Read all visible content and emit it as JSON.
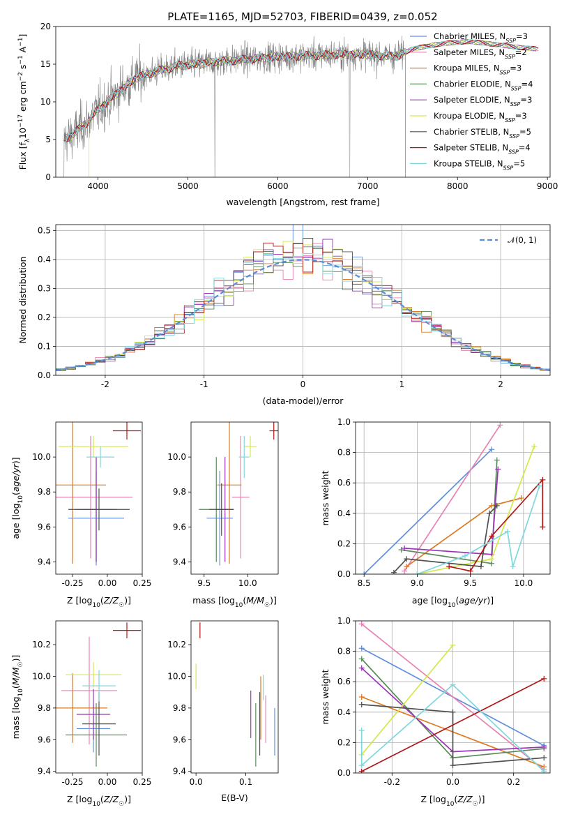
{
  "figure": {
    "title": "PLATE=1165, MJD=52703, FIBERID=0439, z=0.052"
  },
  "colors": {
    "Chabrier MILES": "#5f8fdc",
    "Salpeter MILES": "#e882b4",
    "Kroupa MILES": "#dd7a23",
    "Chabrier ELODIE": "#5a8a5a",
    "Salpeter ELODIE": "#9b35b8",
    "Kroupa ELODIE": "#d4e84a",
    "Chabrier STELIB": "#505050",
    "Salpeter STELIB": "#b01818",
    "Kroupa STELIB": "#7fd7dd",
    "data": "#7f7f7f"
  },
  "chart_data": [
    {
      "id": "spectrum",
      "type": "line",
      "title": "PLATE=1165, MJD=52703, FIBERID=0439, z=0.052",
      "xlabel": "wavelength [Angstrom, rest frame]",
      "ylabel": "Flux [f_λ10^-17 erg cm^-2 s^-1 A^-1]",
      "xlim": [
        3530,
        9030
      ],
      "ylim": [
        0,
        20
      ],
      "xticks": [
        4000,
        5000,
        6000,
        7000,
        8000,
        9000
      ],
      "yticks": [
        0,
        5,
        10,
        15,
        20
      ],
      "grid": false,
      "legend_position": "right",
      "legend": [
        {
          "name": "Chabrier MILES",
          "sub": "SSP",
          "n": "3"
        },
        {
          "name": "Salpeter MILES",
          "sub": "SSP",
          "n": "2"
        },
        {
          "name": "Kroupa MILES",
          "sub": "SSP",
          "n": "3"
        },
        {
          "name": "Chabrier ELODIE",
          "sub": "SSP",
          "n": "4"
        },
        {
          "name": "Salpeter ELODIE",
          "sub": "SSP",
          "n": "3"
        },
        {
          "name": "Kroupa ELODIE",
          "sub": "SSP",
          "n": "3"
        },
        {
          "name": "Chabrier STELIB",
          "sub": "SSP",
          "n": "5"
        },
        {
          "name": "Salpeter STELIB",
          "sub": "SSP",
          "n": "4"
        },
        {
          "name": "Kroupa STELIB",
          "sub": "SSP",
          "n": "5"
        }
      ],
      "continuum": {
        "wavelength": [
          3620,
          3700,
          3800,
          3900,
          4000,
          4100,
          4200,
          4300,
          4400,
          4500,
          4700,
          4900,
          5100,
          5300,
          5500,
          5700,
          5900,
          6100,
          6300,
          6500,
          6700,
          6900,
          7100,
          7300,
          7500,
          7700,
          7900,
          8100,
          8300,
          8500,
          8700,
          8900
        ],
        "flux": [
          5.0,
          5.5,
          6.5,
          7.5,
          9.0,
          10.0,
          11.0,
          12.0,
          13.0,
          13.5,
          14.2,
          14.8,
          15.0,
          15.3,
          15.5,
          15.7,
          15.9,
          16.0,
          16.1,
          16.2,
          16.3,
          16.3,
          16.2,
          16.0,
          17.0,
          17.5,
          17.8,
          18.0,
          17.8,
          17.5,
          17.2,
          17.0
        ]
      }
    },
    {
      "id": "residuals",
      "type": "histogram",
      "xlabel": "(data-model)/error",
      "ylabel": "Normed distribution",
      "xlim": [
        -2.5,
        2.5
      ],
      "ylim": [
        0,
        0.52
      ],
      "xticks": [
        -2,
        -1,
        0,
        1,
        2
      ],
      "yticks": [
        0.0,
        0.1,
        0.2,
        0.3,
        0.4,
        0.5
      ],
      "grid": true,
      "legend_position": "top-right",
      "reference": {
        "name": "𝒩(0, 1)",
        "mu": 0,
        "sigma": 1
      },
      "bin_width": 0.1
    },
    {
      "id": "age_vs_Z",
      "type": "errorbar",
      "xlabel": "Z [log₁₀(Z/Z☉)]",
      "ylabel": "age  [log₁₀(age/yr)]",
      "xlim": [
        -0.37,
        0.25
      ],
      "ylim": [
        9.33,
        10.2
      ],
      "xticks": [
        -0.25,
        0.0,
        0.25
      ],
      "yticks": [
        9.4,
        9.6,
        9.8,
        10.0
      ],
      "points": [
        {
          "model": "Chabrier MILES",
          "x": -0.08,
          "xerr": 0.2,
          "y": 9.65,
          "yerr": 0.27
        },
        {
          "model": "Salpeter MILES",
          "x": -0.12,
          "xerr": 0.3,
          "y": 9.77,
          "yerr": 0.35
        },
        {
          "model": "Kroupa MILES",
          "x": -0.25,
          "xerr": 0.24,
          "y": 9.84,
          "yerr": 0.45
        },
        {
          "model": "Chabrier ELODIE",
          "x": -0.08,
          "xerr": 0.15,
          "y": 9.7,
          "yerr": 0.3
        },
        {
          "model": "Salpeter ELODIE",
          "x": -0.08,
          "xerr": 0.12,
          "y": 9.7,
          "yerr": 0.3
        },
        {
          "model": "Kroupa ELODIE",
          "x": -0.1,
          "xerr": 0.25,
          "y": 10.06,
          "yerr": 0.06
        },
        {
          "model": "Chabrier STELIB",
          "x": -0.06,
          "xerr": 0.22,
          "y": 9.7,
          "yerr": 0.12
        },
        {
          "model": "Kroupa STELIB",
          "x": -0.05,
          "xerr": 0.1,
          "y": 10.0,
          "yerr": 0.06
        },
        {
          "model": "Salpeter STELIB",
          "x": 0.14,
          "xerr": 0.1,
          "y": 10.15,
          "yerr": 0.05
        }
      ]
    },
    {
      "id": "age_vs_mass",
      "type": "errorbar",
      "xlabel": "mass [log₁₀(M/M☉)]",
      "ylabel": "",
      "xlim": [
        9.35,
        10.35
      ],
      "ylim": [
        9.33,
        10.2
      ],
      "xticks": [
        9.5,
        10.0
      ],
      "yticks": [
        9.4,
        9.6,
        9.8,
        10.0
      ],
      "points": [
        {
          "model": "Chabrier MILES",
          "x": 9.68,
          "xerr": 0.15,
          "y": 9.65,
          "yerr": 0.27
        },
        {
          "model": "Salpeter MILES",
          "x": 9.92,
          "xerr": 0.1,
          "y": 9.77,
          "yerr": 0.35
        },
        {
          "model": "Kroupa MILES",
          "x": 9.79,
          "xerr": 0.14,
          "y": 9.84,
          "yerr": 0.45
        },
        {
          "model": "Chabrier ELODIE",
          "x": 9.64,
          "xerr": 0.2,
          "y": 9.7,
          "yerr": 0.3
        },
        {
          "model": "Salpeter ELODIE",
          "x": 9.74,
          "xerr": 0.1,
          "y": 9.7,
          "yerr": 0.3
        },
        {
          "model": "Kroupa ELODIE",
          "x": 10.03,
          "xerr": 0.07,
          "y": 10.06,
          "yerr": 0.06
        },
        {
          "model": "Chabrier STELIB",
          "x": 9.7,
          "xerr": 0.14,
          "y": 9.7,
          "yerr": 0.15
        },
        {
          "model": "Kroupa STELIB",
          "x": 9.96,
          "xerr": 0.06,
          "y": 10.0,
          "yerr": 0.12
        },
        {
          "model": "Salpeter STELIB",
          "x": 10.3,
          "xerr": 0.05,
          "y": 10.15,
          "yerr": 0.05
        }
      ]
    },
    {
      "id": "weight_vs_age",
      "type": "line",
      "xlabel": "age  [log₁₀(age/yr)]",
      "ylabel": "mass weight",
      "xlim": [
        8.42,
        10.25
      ],
      "ylim": [
        0,
        1.0
      ],
      "xticks": [
        8.5,
        9.0,
        9.5,
        10.0
      ],
      "yticks": [
        0.0,
        0.2,
        0.4,
        0.6,
        0.8,
        1.0
      ],
      "grid": true,
      "series": [
        {
          "model": "Chabrier MILES",
          "x": [
            8.5,
            9.7
          ],
          "y": [
            0.0,
            0.82
          ]
        },
        {
          "model": "Salpeter MILES",
          "x": [
            8.88,
            9.78
          ],
          "y": [
            0.02,
            0.98
          ]
        },
        {
          "model": "Kroupa MILES",
          "x": [
            8.9,
            9.7,
            9.98
          ],
          "y": [
            0.05,
            0.45,
            0.5
          ]
        },
        {
          "model": "Chabrier ELODIE",
          "x": [
            8.85,
            9.7,
            9.75
          ],
          "y": [
            0.16,
            0.07,
            0.75
          ]
        },
        {
          "model": "Salpeter ELODIE",
          "x": [
            8.88,
            9.7,
            9.76
          ],
          "y": [
            0.17,
            0.13,
            0.69
          ]
        },
        {
          "model": "Kroupa ELODIE",
          "x": [
            9.0,
            9.7,
            10.1
          ],
          "y": [
            0.0,
            0.1,
            0.84
          ]
        },
        {
          "model": "Chabrier STELIB",
          "x": [
            8.78,
            8.9,
            9.6,
            9.68,
            9.75
          ],
          "y": [
            0.01,
            0.1,
            0.05,
            0.4,
            0.45
          ]
        },
        {
          "model": "Salpeter STELIB",
          "x": [
            9.3,
            9.5,
            9.7,
            10.18,
            10.18
          ],
          "y": [
            0.05,
            0.02,
            0.25,
            0.62,
            0.31
          ]
        },
        {
          "model": "Kroupa STELIB",
          "x": [
            9.0,
            9.45,
            9.85,
            9.9,
            10.15
          ],
          "y": [
            0.0,
            0.12,
            0.28,
            0.05,
            0.58
          ]
        }
      ]
    },
    {
      "id": "mass_vs_Z",
      "type": "errorbar",
      "xlabel": "Z [log₁₀(Z/Z☉)]",
      "ylabel": "mass [log₁₀(M/M☉)]",
      "xlim": [
        -0.37,
        0.25
      ],
      "ylim": [
        9.39,
        10.35
      ],
      "xticks": [
        -0.25,
        0.0,
        0.25
      ],
      "yticks": [
        9.4,
        9.6,
        9.8,
        10.0,
        10.2
      ],
      "points": [
        {
          "model": "Chabrier MILES",
          "x": -0.1,
          "xerr": 0.12,
          "y": 9.67,
          "yerr": 0.15
        },
        {
          "model": "Salpeter MILES",
          "x": -0.13,
          "xerr": 0.2,
          "y": 9.91,
          "yerr": 0.34
        },
        {
          "model": "Kroupa MILES",
          "x": -0.25,
          "xerr": 0.25,
          "y": 9.8,
          "yerr": 0.22
        },
        {
          "model": "Chabrier ELODIE",
          "x": -0.08,
          "xerr": 0.22,
          "y": 9.63,
          "yerr": 0.2
        },
        {
          "model": "Salpeter ELODIE",
          "x": -0.1,
          "xerr": 0.12,
          "y": 9.76,
          "yerr": 0.16
        },
        {
          "model": "Kroupa ELODIE",
          "x": -0.1,
          "xerr": 0.2,
          "y": 10.01,
          "yerr": 0.08
        },
        {
          "model": "Chabrier STELIB",
          "x": -0.06,
          "xerr": 0.12,
          "y": 9.7,
          "yerr": 0.2
        },
        {
          "model": "Kroupa STELIB",
          "x": -0.06,
          "xerr": 0.12,
          "y": 9.94,
          "yerr": 0.1
        },
        {
          "model": "Salpeter STELIB",
          "x": 0.14,
          "xerr": 0.1,
          "y": 10.29,
          "yerr": 0.05
        }
      ]
    },
    {
      "id": "mass_vs_EBV",
      "type": "errorbar",
      "xlabel": "E(B-V)",
      "ylabel": "",
      "xlim": [
        -0.01,
        0.165
      ],
      "ylim": [
        9.39,
        10.35
      ],
      "xticks": [
        0.0,
        0.1
      ],
      "yticks": [
        9.4,
        9.6,
        9.8,
        10.0,
        10.2
      ],
      "points": [
        {
          "model": "Salpeter STELIB",
          "x": 0.008,
          "y": 10.29,
          "yerr": 0.05
        },
        {
          "model": "Kroupa ELODIE",
          "x": 0.0,
          "y": 10.0,
          "yerr": 0.08
        },
        {
          "model": "Salpeter ELODIE",
          "x": 0.11,
          "y": 9.76,
          "yerr": 0.15
        },
        {
          "model": "Chabrier ELODIE",
          "x": 0.12,
          "y": 9.63,
          "yerr": 0.2
        },
        {
          "model": "Kroupa MILES",
          "x": 0.13,
          "y": 9.8,
          "yerr": 0.2
        },
        {
          "model": "Chabrier STELIB",
          "x": 0.128,
          "y": 9.7,
          "yerr": 0.2
        },
        {
          "model": "Kroupa STELIB",
          "x": 0.135,
          "y": 9.93,
          "yerr": 0.08
        },
        {
          "model": "Salpeter MILES",
          "x": 0.14,
          "y": 9.73,
          "yerr": 0.15
        },
        {
          "model": "Chabrier MILES",
          "x": 0.158,
          "y": 9.65,
          "yerr": 0.15
        }
      ]
    },
    {
      "id": "weight_vs_Z",
      "type": "line",
      "xlabel": "Z [log₁₀(Z/Z☉)]",
      "ylabel": "mass weight",
      "xlim": [
        -0.32,
        0.32
      ],
      "ylim": [
        0,
        1.0
      ],
      "xticks": [
        -0.2,
        0.0,
        0.2
      ],
      "yticks": [
        0.0,
        0.2,
        0.4,
        0.6,
        0.8,
        1.0
      ],
      "grid": true,
      "series": [
        {
          "model": "Chabrier MILES",
          "x": [
            -0.3,
            0.3
          ],
          "y": [
            0.82,
            0.18
          ]
        },
        {
          "model": "Salpeter MILES",
          "x": [
            -0.3,
            0.3
          ],
          "y": [
            0.98,
            0.02
          ]
        },
        {
          "model": "Kroupa MILES",
          "x": [
            -0.3,
            0.3
          ],
          "y": [
            0.5,
            0.04
          ]
        },
        {
          "model": "Chabrier ELODIE",
          "x": [
            -0.3,
            0.0,
            0.3
          ],
          "y": [
            0.75,
            0.1,
            0.16
          ]
        },
        {
          "model": "Salpeter ELODIE",
          "x": [
            -0.3,
            0.0,
            0.3
          ],
          "y": [
            0.69,
            0.14,
            0.17
          ]
        },
        {
          "model": "Kroupa ELODIE",
          "x": [
            -0.3,
            0.0
          ],
          "y": [
            0.12,
            0.84
          ]
        },
        {
          "model": "Chabrier STELIB",
          "x": [
            -0.3,
            0.0,
            0.0,
            0.3
          ],
          "y": [
            0.45,
            0.4,
            0.05,
            0.1
          ]
        },
        {
          "model": "Salpeter STELIB",
          "x": [
            -0.3,
            0.3
          ],
          "y": [
            0.01,
            0.62
          ]
        },
        {
          "model": "Kroupa STELIB",
          "x": [
            -0.3,
            -0.3,
            0.0,
            0.3
          ],
          "y": [
            0.28,
            0.05,
            0.58,
            0.01
          ]
        }
      ]
    }
  ]
}
